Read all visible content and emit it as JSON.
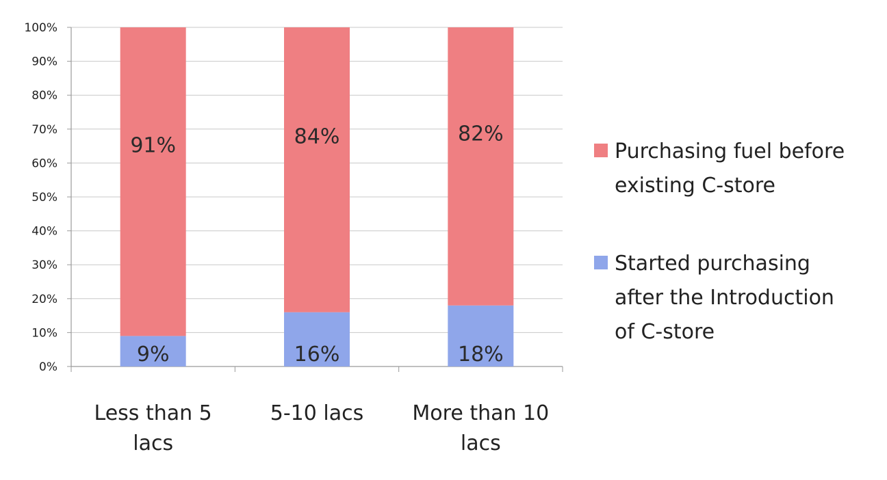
{
  "chart_data": {
    "type": "bar",
    "stacked": true,
    "percent": true,
    "categories": [
      "Less than 5 lacs",
      "5-10 lacs",
      "More than 10 lacs"
    ],
    "category_lines": [
      [
        "Less than 5",
        "lacs"
      ],
      [
        "5-10 lacs"
      ],
      [
        "More than 10",
        "lacs"
      ]
    ],
    "series": [
      {
        "name": "Started purchasing after the Introduction of C-store",
        "legend_lines": [
          "Started purchasing",
          "after the Introduction",
          "of C-store"
        ],
        "values": [
          9,
          16,
          18
        ],
        "labels": [
          "9%",
          "16%",
          "18%"
        ],
        "color": "#8fa6ea"
      },
      {
        "name": "Purchasing fuel before existing C-store",
        "legend_lines": [
          "Purchasing fuel before",
          "existing C-store"
        ],
        "values": [
          91,
          84,
          82
        ],
        "labels": [
          "91%",
          "84%",
          "82%"
        ],
        "color": "#ef7f82"
      }
    ],
    "ylim": [
      0,
      100
    ],
    "yticks": [
      "0%",
      "10%",
      "20%",
      "30%",
      "40%",
      "50%",
      "60%",
      "70%",
      "80%",
      "90%",
      "100%"
    ],
    "grid": true,
    "legend_position": "right",
    "title": "",
    "xlabel": "",
    "ylabel": ""
  }
}
